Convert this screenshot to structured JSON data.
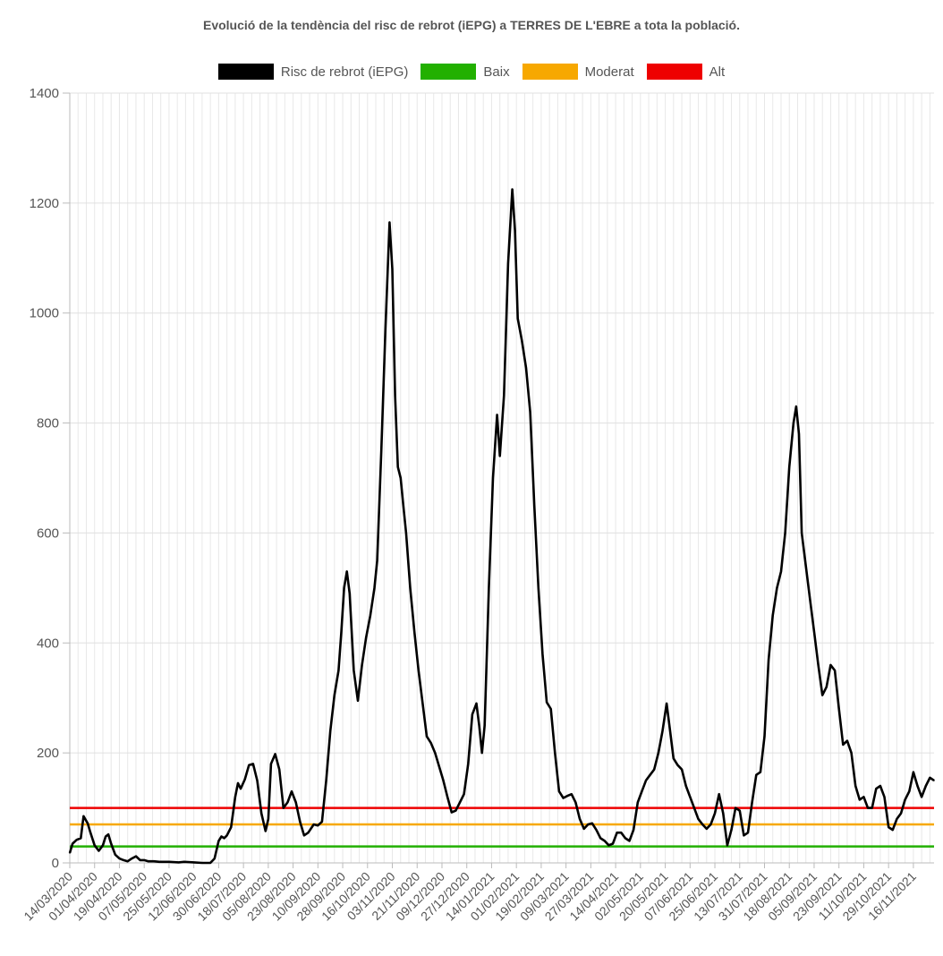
{
  "chart_data": {
    "type": "line",
    "title": "Evolució de la tendència del risc de rebrot (iEPG) a TERRES DE L'EBRE a tota la població.",
    "xlabel": "",
    "ylabel": "",
    "ylim": [
      0,
      1400
    ],
    "yticks": [
      "0",
      "200",
      "400",
      "600",
      "800",
      "1000",
      "1200",
      "1400"
    ],
    "grid": true,
    "legend_position": "top",
    "x_tick_labels": [
      "14/03/2020",
      "01/04/2020",
      "19/04/2020",
      "07/05/2020",
      "25/05/2020",
      "12/06/2020",
      "30/06/2020",
      "18/07/2020",
      "05/08/2020",
      "23/08/2020",
      "10/09/2020",
      "28/09/2020",
      "16/10/2020",
      "03/11/2020",
      "21/11/2020",
      "09/12/2020",
      "27/12/2020",
      "14/01/2021",
      "01/02/2021",
      "19/02/2021",
      "09/03/2021",
      "27/03/2021",
      "14/04/2021",
      "02/05/2021",
      "20/05/2021",
      "07/06/2021",
      "25/06/2021",
      "13/07/2021",
      "31/07/2021",
      "18/08/2021",
      "05/09/2021",
      "23/09/2021",
      "11/10/2021",
      "29/10/2021",
      "16/11/2021"
    ],
    "x_range": [
      "2020-03-14",
      "2021-12-01"
    ],
    "series": [
      {
        "name": "Risc de rebrot (iEPG)",
        "color": "#000000",
        "points": [
          [
            "2020-03-14",
            18
          ],
          [
            "2020-03-16",
            35
          ],
          [
            "2020-03-19",
            42
          ],
          [
            "2020-03-22",
            45
          ],
          [
            "2020-03-24",
            85
          ],
          [
            "2020-03-27",
            72
          ],
          [
            "2020-03-29",
            55
          ],
          [
            "2020-04-01",
            32
          ],
          [
            "2020-04-04",
            22
          ],
          [
            "2020-04-07",
            32
          ],
          [
            "2020-04-09",
            48
          ],
          [
            "2020-04-11",
            52
          ],
          [
            "2020-04-13",
            35
          ],
          [
            "2020-04-16",
            15
          ],
          [
            "2020-04-19",
            8
          ],
          [
            "2020-04-22",
            5
          ],
          [
            "2020-04-25",
            3
          ],
          [
            "2020-04-28",
            8
          ],
          [
            "2020-05-01",
            12
          ],
          [
            "2020-05-04",
            5
          ],
          [
            "2020-05-07",
            5
          ],
          [
            "2020-05-10",
            3
          ],
          [
            "2020-05-14",
            3
          ],
          [
            "2020-05-18",
            2
          ],
          [
            "2020-05-25",
            2
          ],
          [
            "2020-06-01",
            1
          ],
          [
            "2020-06-05",
            2
          ],
          [
            "2020-06-12",
            1
          ],
          [
            "2020-06-18",
            0
          ],
          [
            "2020-06-24",
            0
          ],
          [
            "2020-06-27",
            8
          ],
          [
            "2020-06-30",
            40
          ],
          [
            "2020-07-02",
            48
          ],
          [
            "2020-07-04",
            45
          ],
          [
            "2020-07-06",
            50
          ],
          [
            "2020-07-09",
            65
          ],
          [
            "2020-07-12",
            120
          ],
          [
            "2020-07-14",
            145
          ],
          [
            "2020-07-16",
            135
          ],
          [
            "2020-07-19",
            152
          ],
          [
            "2020-07-22",
            178
          ],
          [
            "2020-07-25",
            180
          ],
          [
            "2020-07-28",
            150
          ],
          [
            "2020-07-31",
            90
          ],
          [
            "2020-08-03",
            58
          ],
          [
            "2020-08-05",
            80
          ],
          [
            "2020-08-07",
            180
          ],
          [
            "2020-08-10",
            198
          ],
          [
            "2020-08-13",
            170
          ],
          [
            "2020-08-16",
            100
          ],
          [
            "2020-08-19",
            110
          ],
          [
            "2020-08-22",
            130
          ],
          [
            "2020-08-25",
            110
          ],
          [
            "2020-08-28",
            75
          ],
          [
            "2020-08-31",
            50
          ],
          [
            "2020-09-03",
            55
          ],
          [
            "2020-09-07",
            70
          ],
          [
            "2020-09-10",
            68
          ],
          [
            "2020-09-13",
            75
          ],
          [
            "2020-09-16",
            150
          ],
          [
            "2020-09-19",
            240
          ],
          [
            "2020-09-22",
            305
          ],
          [
            "2020-09-25",
            350
          ],
          [
            "2020-09-27",
            420
          ],
          [
            "2020-09-29",
            500
          ],
          [
            "2020-10-01",
            530
          ],
          [
            "2020-10-03",
            490
          ],
          [
            "2020-10-06",
            350
          ],
          [
            "2020-10-09",
            295
          ],
          [
            "2020-10-12",
            360
          ],
          [
            "2020-10-15",
            410
          ],
          [
            "2020-10-18",
            450
          ],
          [
            "2020-10-21",
            500
          ],
          [
            "2020-10-23",
            550
          ],
          [
            "2020-10-26",
            750
          ],
          [
            "2020-10-29",
            970
          ],
          [
            "2020-11-01",
            1165
          ],
          [
            "2020-11-03",
            1080
          ],
          [
            "2020-11-05",
            850
          ],
          [
            "2020-11-07",
            720
          ],
          [
            "2020-11-09",
            700
          ],
          [
            "2020-11-11",
            650
          ],
          [
            "2020-11-13",
            600
          ],
          [
            "2020-11-16",
            500
          ],
          [
            "2020-11-19",
            420
          ],
          [
            "2020-11-22",
            350
          ],
          [
            "2020-11-25",
            290
          ],
          [
            "2020-11-28",
            230
          ],
          [
            "2020-12-01",
            218
          ],
          [
            "2020-12-04",
            200
          ],
          [
            "2020-12-07",
            175
          ],
          [
            "2020-12-10",
            150
          ],
          [
            "2020-12-13",
            120
          ],
          [
            "2020-12-16",
            92
          ],
          [
            "2020-12-19",
            95
          ],
          [
            "2020-12-22",
            110
          ],
          [
            "2020-12-25",
            125
          ],
          [
            "2020-12-28",
            180
          ],
          [
            "2020-12-31",
            270
          ],
          [
            "2021-01-03",
            290
          ],
          [
            "2021-01-05",
            250
          ],
          [
            "2021-01-07",
            200
          ],
          [
            "2021-01-09",
            250
          ],
          [
            "2021-01-12",
            500
          ],
          [
            "2021-01-15",
            700
          ],
          [
            "2021-01-18",
            815
          ],
          [
            "2021-01-20",
            740
          ],
          [
            "2021-01-23",
            850
          ],
          [
            "2021-01-26",
            1090
          ],
          [
            "2021-01-29",
            1225
          ],
          [
            "2021-01-31",
            1150
          ],
          [
            "2021-02-02",
            990
          ],
          [
            "2021-02-05",
            950
          ],
          [
            "2021-02-08",
            900
          ],
          [
            "2021-02-11",
            820
          ],
          [
            "2021-02-14",
            650
          ],
          [
            "2021-02-17",
            500
          ],
          [
            "2021-02-20",
            380
          ],
          [
            "2021-02-23",
            292
          ],
          [
            "2021-02-26",
            280
          ],
          [
            "2021-03-01",
            200
          ],
          [
            "2021-03-04",
            130
          ],
          [
            "2021-03-07",
            118
          ],
          [
            "2021-03-10",
            122
          ],
          [
            "2021-03-13",
            125
          ],
          [
            "2021-03-16",
            110
          ],
          [
            "2021-03-19",
            80
          ],
          [
            "2021-03-22",
            62
          ],
          [
            "2021-03-25",
            70
          ],
          [
            "2021-03-28",
            72
          ],
          [
            "2021-03-31",
            60
          ],
          [
            "2021-04-03",
            45
          ],
          [
            "2021-04-06",
            40
          ],
          [
            "2021-04-09",
            32
          ],
          [
            "2021-04-12",
            35
          ],
          [
            "2021-04-15",
            55
          ],
          [
            "2021-04-18",
            55
          ],
          [
            "2021-04-21",
            45
          ],
          [
            "2021-04-24",
            40
          ],
          [
            "2021-04-27",
            60
          ],
          [
            "2021-04-30",
            110
          ],
          [
            "2021-05-03",
            130
          ],
          [
            "2021-05-06",
            150
          ],
          [
            "2021-05-09",
            160
          ],
          [
            "2021-05-12",
            170
          ],
          [
            "2021-05-15",
            200
          ],
          [
            "2021-05-18",
            240
          ],
          [
            "2021-05-21",
            290
          ],
          [
            "2021-05-23",
            250
          ],
          [
            "2021-05-26",
            190
          ],
          [
            "2021-05-29",
            178
          ],
          [
            "2021-06-01",
            170
          ],
          [
            "2021-06-04",
            140
          ],
          [
            "2021-06-07",
            120
          ],
          [
            "2021-06-10",
            100
          ],
          [
            "2021-06-13",
            80
          ],
          [
            "2021-06-16",
            70
          ],
          [
            "2021-06-19",
            62
          ],
          [
            "2021-06-22",
            70
          ],
          [
            "2021-06-25",
            90
          ],
          [
            "2021-06-28",
            125
          ],
          [
            "2021-07-01",
            90
          ],
          [
            "2021-07-04",
            32
          ],
          [
            "2021-07-07",
            60
          ],
          [
            "2021-07-10",
            100
          ],
          [
            "2021-07-13",
            95
          ],
          [
            "2021-07-16",
            50
          ],
          [
            "2021-07-19",
            55
          ],
          [
            "2021-07-22",
            110
          ],
          [
            "2021-07-25",
            160
          ],
          [
            "2021-07-28",
            165
          ],
          [
            "2021-07-31",
            230
          ],
          [
            "2021-08-03",
            370
          ],
          [
            "2021-08-06",
            450
          ],
          [
            "2021-08-09",
            500
          ],
          [
            "2021-08-12",
            530
          ],
          [
            "2021-08-15",
            600
          ],
          [
            "2021-08-18",
            720
          ],
          [
            "2021-08-21",
            800
          ],
          [
            "2021-08-23",
            830
          ],
          [
            "2021-08-25",
            780
          ],
          [
            "2021-08-27",
            600
          ],
          [
            "2021-08-30",
            540
          ],
          [
            "2021-09-02",
            480
          ],
          [
            "2021-09-05",
            420
          ],
          [
            "2021-09-08",
            360
          ],
          [
            "2021-09-11",
            305
          ],
          [
            "2021-09-14",
            320
          ],
          [
            "2021-09-17",
            360
          ],
          [
            "2021-09-20",
            350
          ],
          [
            "2021-09-23",
            280
          ],
          [
            "2021-09-26",
            215
          ],
          [
            "2021-09-29",
            222
          ],
          [
            "2021-10-02",
            200
          ],
          [
            "2021-10-05",
            140
          ],
          [
            "2021-10-08",
            115
          ],
          [
            "2021-10-11",
            120
          ],
          [
            "2021-10-14",
            100
          ],
          [
            "2021-10-17",
            100
          ],
          [
            "2021-10-20",
            135
          ],
          [
            "2021-10-23",
            140
          ],
          [
            "2021-10-26",
            120
          ],
          [
            "2021-10-29",
            65
          ],
          [
            "2021-11-01",
            60
          ],
          [
            "2021-11-04",
            80
          ],
          [
            "2021-11-07",
            90
          ],
          [
            "2021-11-10",
            115
          ],
          [
            "2021-11-13",
            130
          ],
          [
            "2021-11-16",
            165
          ],
          [
            "2021-11-19",
            140
          ],
          [
            "2021-11-22",
            120
          ],
          [
            "2021-11-25",
            140
          ],
          [
            "2021-11-28",
            155
          ],
          [
            "2021-12-01",
            150
          ]
        ]
      },
      {
        "name": "Baix",
        "color": "#22b000",
        "constant": 30
      },
      {
        "name": "Moderat",
        "color": "#f7a800",
        "constant": 70
      },
      {
        "name": "Alt",
        "color": "#ee0000",
        "constant": 100
      }
    ]
  }
}
